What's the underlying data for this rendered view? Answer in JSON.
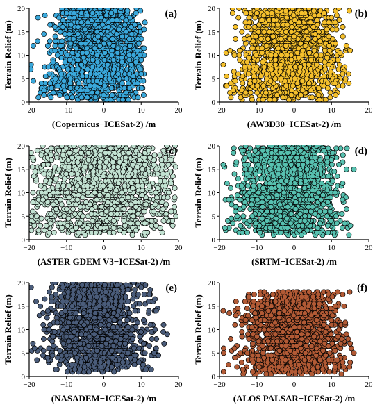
{
  "figure": {
    "title": ""
  },
  "chart_data": [
    {
      "type": "scatter",
      "panel_label": "(a)",
      "xlabel": "(Copernicus−ICESat-2) /m",
      "ylabel": "Terrain Relief (m)",
      "xlim": [
        -20,
        20
      ],
      "ylim": [
        0,
        20
      ],
      "x_ticks": [
        "−20",
        "−10",
        "0",
        "10",
        "20"
      ],
      "y_ticks": [
        "0",
        "5",
        "10",
        "15",
        "20"
      ],
      "color": "#3AA8DB",
      "distribution": {
        "center": -1,
        "spread": 4.5,
        "x_range": [
          -20,
          11
        ],
        "y_range": [
          0.5,
          20
        ]
      },
      "points": [
        [
          -19.5,
          8
        ],
        [
          -17,
          2
        ],
        [
          -16,
          2.5
        ],
        [
          -15,
          12
        ],
        [
          -14,
          3
        ],
        [
          -13,
          14
        ],
        [
          -12,
          18
        ],
        [
          -11,
          16
        ],
        [
          -10,
          19
        ],
        [
          -8,
          19
        ],
        [
          -6,
          17
        ],
        [
          -3,
          19
        ],
        [
          -1,
          20
        ],
        [
          2,
          19
        ],
        [
          5,
          18
        ],
        [
          7,
          12
        ],
        [
          8,
          10
        ],
        [
          9,
          11
        ],
        [
          10,
          9
        ],
        [
          11,
          17
        ],
        [
          10,
          6
        ],
        [
          9,
          4
        ],
        [
          6,
          2
        ]
      ]
    },
    {
      "type": "scatter",
      "panel_label": "(b)",
      "xlabel": "(AW3D30−ICESat-2) /m",
      "ylabel": "Terrain Relief (m)",
      "xlim": [
        -20,
        20
      ],
      "ylim": [
        0,
        20
      ],
      "x_ticks": [
        "−20",
        "−10",
        "0",
        "10",
        "20"
      ],
      "y_ticks": [
        "0",
        "5",
        "10",
        "15",
        "20"
      ],
      "color": "#F5C02C",
      "distribution": {
        "center": -1,
        "spread": 5,
        "x_range": [
          -19,
          15
        ],
        "y_range": [
          0.5,
          20
        ]
      },
      "points": [
        [
          -19,
          8
        ],
        [
          -17,
          4
        ],
        [
          -16,
          10
        ],
        [
          -15,
          6
        ],
        [
          -14,
          15
        ],
        [
          -13,
          2
        ],
        [
          -12,
          17
        ],
        [
          -10,
          19
        ],
        [
          -6,
          19
        ],
        [
          -4,
          20
        ],
        [
          -2,
          18
        ],
        [
          2,
          19
        ],
        [
          4,
          20
        ],
        [
          8,
          19
        ],
        [
          10,
          18
        ],
        [
          12,
          20
        ],
        [
          13,
          16
        ],
        [
          14,
          12
        ],
        [
          15,
          11
        ],
        [
          13,
          6
        ],
        [
          11,
          4
        ],
        [
          9,
          3
        ]
      ]
    },
    {
      "type": "scatter",
      "panel_label": "(c)",
      "xlabel": "(ASTER GDEM V3−ICESat-2) /m",
      "ylabel": "Terrain Relief (m)",
      "xlim": [
        -20,
        20
      ],
      "ylim": [
        0,
        20
      ],
      "x_ticks": [
        "−20",
        "−10",
        "0",
        "10",
        "20"
      ],
      "y_ticks": [
        "0",
        "5",
        "10",
        "15",
        "20"
      ],
      "color": "#C2E2D2",
      "distribution": {
        "center": 0,
        "spread": 8,
        "x_range": [
          -19.5,
          19.5
        ],
        "y_range": [
          1,
          20
        ]
      },
      "points": [
        [
          -19,
          8
        ],
        [
          -19,
          10
        ],
        [
          -18,
          5
        ],
        [
          -17,
          3
        ],
        [
          -16,
          14
        ],
        [
          -15,
          16
        ],
        [
          -14,
          17
        ],
        [
          -12,
          19
        ],
        [
          -8,
          20
        ],
        [
          -4,
          20
        ],
        [
          0,
          20
        ],
        [
          4,
          20
        ],
        [
          8,
          20
        ],
        [
          12,
          19
        ],
        [
          15,
          18
        ],
        [
          17,
          14
        ],
        [
          18,
          12
        ],
        [
          19,
          9
        ],
        [
          19,
          11
        ],
        [
          18,
          6
        ],
        [
          16,
          4
        ],
        [
          14,
          3
        ]
      ]
    },
    {
      "type": "scatter",
      "panel_label": "(d)",
      "xlabel": "(SRTM−ICESat-2) /m",
      "ylabel": "Terrain Relief (m)",
      "xlim": [
        -20,
        20
      ],
      "ylim": [
        0,
        20
      ],
      "x_ticks": [
        "−20",
        "−10",
        "0",
        "10",
        "20"
      ],
      "y_ticks": [
        "0",
        "5",
        "10",
        "15",
        "20"
      ],
      "color": "#57C1B0",
      "distribution": {
        "center": -2,
        "spread": 4.5,
        "x_range": [
          -19,
          16
        ],
        "y_range": [
          1,
          20
        ]
      },
      "points": [
        [
          -19,
          16
        ],
        [
          -18,
          12
        ],
        [
          -17,
          11
        ],
        [
          -16,
          14
        ],
        [
          -15,
          13
        ],
        [
          -14,
          19
        ],
        [
          -13,
          20
        ],
        [
          -12,
          18
        ],
        [
          6,
          20
        ],
        [
          8,
          19
        ],
        [
          10,
          17
        ],
        [
          12,
          16
        ],
        [
          14,
          15
        ],
        [
          16,
          15
        ],
        [
          13,
          12
        ],
        [
          11,
          10
        ],
        [
          9,
          8
        ],
        [
          7,
          6
        ]
      ]
    },
    {
      "type": "scatter",
      "panel_label": "(e)",
      "xlabel": "(NASADEM−ICESat-2) /m",
      "ylabel": "Terrain Relief (m)",
      "xlim": [
        -20,
        20
      ],
      "ylim": [
        0,
        20
      ],
      "x_ticks": [
        "−20",
        "−10",
        "0",
        "10",
        "20"
      ],
      "y_ticks": [
        "0",
        "5",
        "10",
        "15",
        "20"
      ],
      "color": "#4A5C7A",
      "distribution": {
        "center": -2,
        "spread": 4.5,
        "x_range": [
          -19.5,
          17
        ],
        "y_range": [
          1,
          20
        ]
      },
      "points": [
        [
          -19.5,
          19
        ],
        [
          -19,
          7
        ],
        [
          -17,
          15
        ],
        [
          -16,
          10
        ],
        [
          -15,
          14
        ],
        [
          -14,
          17
        ],
        [
          -13,
          20
        ],
        [
          -11,
          19
        ],
        [
          5,
          19
        ],
        [
          8,
          20
        ],
        [
          10,
          19
        ],
        [
          12,
          16
        ],
        [
          14,
          14
        ],
        [
          16,
          11
        ],
        [
          17,
          9
        ],
        [
          14,
          6
        ],
        [
          11,
          5
        ]
      ]
    },
    {
      "type": "scatter",
      "panel_label": "(f)",
      "xlabel": "(ALOS PALSAR−ICESat-2) /m",
      "ylabel": "Terrain Relief (m)",
      "xlim": [
        -20,
        20
      ],
      "ylim": [
        0,
        20
      ],
      "x_ticks": [
        "−20",
        "−10",
        "0",
        "10",
        "20"
      ],
      "y_ticks": [
        "0",
        "5",
        "10",
        "15",
        "20"
      ],
      "color": "#B25A35",
      "distribution": {
        "center": 0,
        "spread": 4.5,
        "x_range": [
          -19,
          16
        ],
        "y_range": [
          0.5,
          18
        ]
      },
      "points": [
        [
          -19,
          14
        ],
        [
          -17,
          8
        ],
        [
          -16,
          6
        ],
        [
          -14,
          11
        ],
        [
          -13,
          12
        ],
        [
          -11,
          15
        ],
        [
          -8,
          18
        ],
        [
          -5,
          16
        ],
        [
          -2,
          16
        ],
        [
          2,
          17
        ],
        [
          4,
          18
        ],
        [
          6,
          12
        ],
        [
          8,
          13
        ],
        [
          10,
          11
        ],
        [
          12,
          10
        ],
        [
          14,
          9
        ],
        [
          15,
          7
        ],
        [
          16,
          5
        ],
        [
          13,
          3
        ],
        [
          11,
          2
        ]
      ]
    }
  ]
}
